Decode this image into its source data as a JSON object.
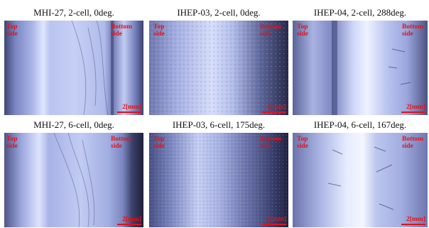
{
  "panels": [
    {
      "caption": "MHI-27, 2-cell, 0deg.",
      "top_label": [
        "Top",
        "side"
      ],
      "bottom_label": [
        "Bottom",
        "side"
      ],
      "scale": "2[mm]"
    },
    {
      "caption": "IHEP-03, 2-cell, 0deg.",
      "top_label": [
        "Top",
        "side"
      ],
      "bottom_label": [
        "Bottom",
        "side"
      ],
      "scale": "2[mm]"
    },
    {
      "caption": "IHEP-04, 2-cell, 288deg.",
      "top_label": [
        "Top",
        "side"
      ],
      "bottom_label": [
        "Bottom",
        "side"
      ],
      "scale": "2[mm]"
    },
    {
      "caption": "MHI-27, 6-cell, 0deg.",
      "top_label": [
        "Top",
        "side"
      ],
      "bottom_label": [
        "Bottom",
        "side"
      ],
      "scale": "2[mm]"
    },
    {
      "caption": "IHEP-03, 6-cell, 175deg.",
      "top_label": [
        "Top",
        "side"
      ],
      "bottom_label": [
        "Bottom",
        "side"
      ],
      "scale": "2[mm]"
    },
    {
      "caption": "IHEP-04, 6-cell, 167deg.",
      "top_label": [
        "Top",
        "side"
      ],
      "bottom_label": [
        "Bottom",
        "side"
      ],
      "scale": "2[mm]"
    }
  ],
  "colors": {
    "label_red": "#e0121a",
    "metal_light": "#c9d3f4",
    "metal_mid": "#8e9bd6",
    "metal_dark": "#30345e"
  }
}
